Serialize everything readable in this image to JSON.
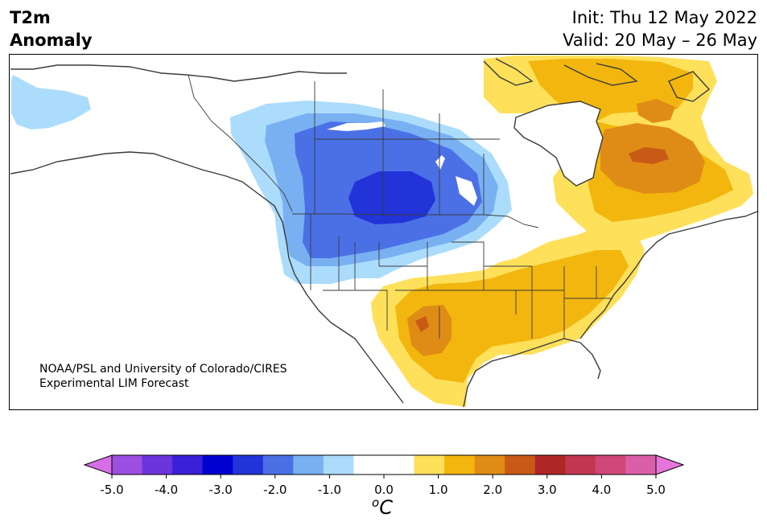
{
  "header": {
    "title_line1": "T2m",
    "title_line2": "Anomaly",
    "init": "Init: Thu 12 May 2022",
    "valid": "Valid: 20 May – 26 May"
  },
  "credit": {
    "line1": "NOAA/PSL and University of Colorado/CIRES",
    "line2": "Experimental LIM Forecast"
  },
  "colorbar": {
    "ticks": [
      "-5.0",
      "-4.0",
      "-3.0",
      "-2.0",
      "-1.0",
      "0.0",
      "1.0",
      "2.0",
      "3.0",
      "4.0",
      "5.0"
    ],
    "colors": [
      "#d56fe8",
      "#9c4fe0",
      "#6c34dc",
      "#3a20d6",
      "#0000d0",
      "#2233d8",
      "#4b70e6",
      "#78b0f2",
      "#acdcfc",
      "#ffffff",
      "#ffffff",
      "#ffe05a",
      "#f2b60e",
      "#df8c16",
      "#c85a16",
      "#b02626",
      "#c23650",
      "#d04878",
      "#db5fa8",
      "#e575d8"
    ],
    "unit": "C",
    "unit_sup": "o"
  },
  "legend_colors": {
    "strong_cold": "#2233d8",
    "moderate_cold": "#4b70e6",
    "mild_cold": "#78b0f2",
    "slight_cold": "#acdcfc",
    "slight_warm": "#ffe05a",
    "mild_warm": "#f2b60e",
    "moderate_warm": "#df8c16",
    "strong_warm": "#c85a16"
  }
}
